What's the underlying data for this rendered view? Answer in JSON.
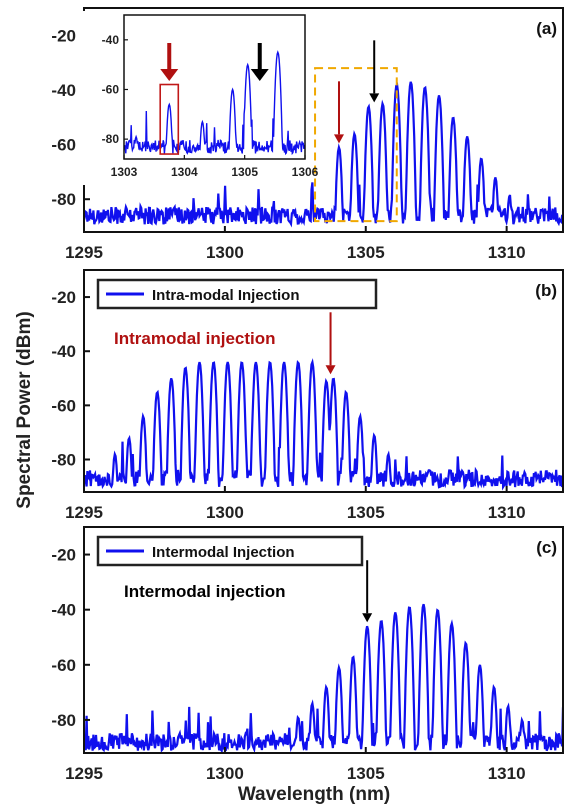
{
  "chart_data": {
    "type": "line",
    "shared_ylabel": "Spectral Power (dBm)",
    "shared_xlabel": "Wavelength (nm)",
    "colors": {
      "trace": "#1010ee",
      "red_arrow": "#b01010",
      "black_arrow": "#000000",
      "zoom_box": "#f0a800",
      "inset_box": "#c01818"
    },
    "panels": [
      {
        "id": "a",
        "label": "(a)",
        "xlim": [
          1295,
          1312
        ],
        "ylim": [
          -92,
          -10
        ],
        "xticks": [
          "1295",
          "1300",
          "1305",
          "1310"
        ],
        "yticks": [
          "-20",
          "-40",
          "-60",
          "-80"
        ],
        "noise_floor": -86,
        "comb": [
          {
            "x": 1304.05,
            "y": -61
          },
          {
            "x": 1304.6,
            "y": -56
          },
          {
            "x": 1305.1,
            "y": -46
          },
          {
            "x": 1305.6,
            "y": -45
          },
          {
            "x": 1306.1,
            "y": -38
          },
          {
            "x": 1306.6,
            "y": -37
          },
          {
            "x": 1307.1,
            "y": -39
          },
          {
            "x": 1307.6,
            "y": -42
          },
          {
            "x": 1308.1,
            "y": -50
          },
          {
            "x": 1308.6,
            "y": -57
          },
          {
            "x": 1309.1,
            "y": -65
          },
          {
            "x": 1309.6,
            "y": -72
          },
          {
            "x": 1310.1,
            "y": -79
          }
        ],
        "zoom_region": {
          "x": [
            1303.2,
            1306.1
          ],
          "y": [
            -88,
            -32
          ]
        },
        "arrows": [
          {
            "x": 1304.05,
            "color": "red"
          },
          {
            "x": 1305.3,
            "color": "black"
          }
        ],
        "inset": {
          "xlim": [
            1303,
            1306
          ],
          "ylim": [
            -88,
            -30
          ],
          "xticks": [
            "1303",
            "1304",
            "1305",
            "1306"
          ],
          "yticks": [
            "-40",
            "-60",
            "-80"
          ],
          "noise_floor": -83,
          "comb": [
            {
              "x": 1303.2,
              "y": -79
            },
            {
              "x": 1303.75,
              "y": -66
            },
            {
              "x": 1304.3,
              "y": -73
            },
            {
              "x": 1304.8,
              "y": -60
            },
            {
              "x": 1305.05,
              "y": -50
            },
            {
              "x": 1305.55,
              "y": -45
            }
          ],
          "highlight": {
            "x": [
              1303.6,
              1303.9
            ],
            "y": [
              -86,
              -58
            ]
          },
          "arrows": [
            {
              "x": 1303.75,
              "color": "red"
            },
            {
              "x": 1305.25,
              "color": "black"
            }
          ]
        }
      },
      {
        "id": "b",
        "label": "(b)",
        "legend": "Intra-modal Injection",
        "annotation": "Intramodal injection",
        "xlim": [
          1295,
          1312
        ],
        "ylim": [
          -92,
          -10
        ],
        "xticks": [
          "1295",
          "1300",
          "1305",
          "1310"
        ],
        "yticks": [
          "-20",
          "-40",
          "-60",
          "-80"
        ],
        "noise_floor": -87,
        "comb": [
          {
            "x": 1296.1,
            "y": -78
          },
          {
            "x": 1296.6,
            "y": -72
          },
          {
            "x": 1297.1,
            "y": -64
          },
          {
            "x": 1297.6,
            "y": -55
          },
          {
            "x": 1298.1,
            "y": -50
          },
          {
            "x": 1298.6,
            "y": -46
          },
          {
            "x": 1299.1,
            "y": -44
          },
          {
            "x": 1299.6,
            "y": -44
          },
          {
            "x": 1300.1,
            "y": -44
          },
          {
            "x": 1300.6,
            "y": -44
          },
          {
            "x": 1301.1,
            "y": -44
          },
          {
            "x": 1301.6,
            "y": -44
          },
          {
            "x": 1302.1,
            "y": -44
          },
          {
            "x": 1302.6,
            "y": -44
          },
          {
            "x": 1303.1,
            "y": -44
          },
          {
            "x": 1303.6,
            "y": -51
          },
          {
            "x": 1303.85,
            "y": -50
          },
          {
            "x": 1304.3,
            "y": -55
          },
          {
            "x": 1304.8,
            "y": -64
          },
          {
            "x": 1305.3,
            "y": -71
          },
          {
            "x": 1305.8,
            "y": -78
          }
        ],
        "arrows": [
          {
            "x": 1303.75,
            "color": "red"
          }
        ]
      },
      {
        "id": "c",
        "label": "(c)",
        "legend": "Intermodal Injection",
        "annotation": "Intermodal injection",
        "xlim": [
          1295,
          1312
        ],
        "ylim": [
          -92,
          -10
        ],
        "xticks": [
          "1295",
          "1300",
          "1305",
          "1310"
        ],
        "yticks": [
          "-20",
          "-40",
          "-60",
          "-80"
        ],
        "noise_floor": -88,
        "comb": [
          {
            "x": 1302.6,
            "y": -79
          },
          {
            "x": 1303.1,
            "y": -74
          },
          {
            "x": 1303.6,
            "y": -68
          },
          {
            "x": 1304.05,
            "y": -61
          },
          {
            "x": 1304.55,
            "y": -57
          },
          {
            "x": 1305.05,
            "y": -46
          },
          {
            "x": 1305.55,
            "y": -44
          },
          {
            "x": 1306.05,
            "y": -41
          },
          {
            "x": 1306.55,
            "y": -39
          },
          {
            "x": 1307.05,
            "y": -38
          },
          {
            "x": 1307.55,
            "y": -40
          },
          {
            "x": 1308.05,
            "y": -45
          },
          {
            "x": 1308.55,
            "y": -52
          },
          {
            "x": 1309.05,
            "y": -60
          },
          {
            "x": 1309.55,
            "y": -68
          },
          {
            "x": 1310.05,
            "y": -75
          },
          {
            "x": 1310.55,
            "y": -80
          }
        ],
        "arrows": [
          {
            "x": 1305.05,
            "color": "black"
          }
        ]
      }
    ]
  }
}
